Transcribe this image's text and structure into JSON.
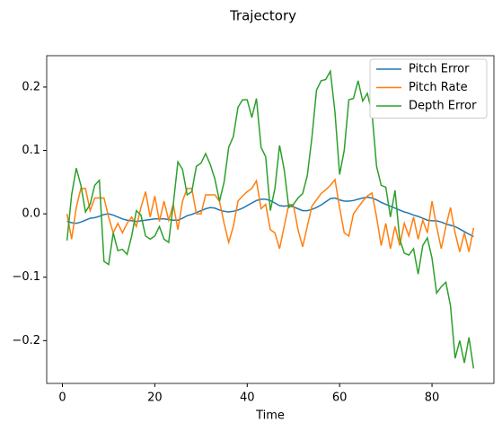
{
  "chart_data": {
    "type": "line",
    "title": "Trajectory",
    "x_label": "Time",
    "x": [
      1,
      2,
      3,
      4,
      5,
      6,
      7,
      8,
      9,
      10,
      11,
      12,
      13,
      14,
      15,
      16,
      17,
      18,
      19,
      20,
      21,
      22,
      23,
      24,
      25,
      26,
      27,
      28,
      29,
      30,
      31,
      32,
      33,
      34,
      35,
      36,
      37,
      38,
      39,
      40,
      41,
      42,
      43,
      44,
      45,
      46,
      47,
      48,
      49,
      50,
      51,
      52,
      53,
      54,
      55,
      56,
      57,
      58,
      59,
      60,
      61,
      62,
      63,
      64,
      65,
      66,
      67,
      68,
      69,
      70,
      71,
      72,
      73,
      74,
      75,
      76,
      77,
      78,
      79,
      80,
      81,
      82,
      83,
      84,
      85,
      86,
      87,
      88,
      89
    ],
    "series": [
      {
        "name": "Pitch Error",
        "color": "#1f77b4",
        "values": [
          -0.012,
          -0.014,
          -0.015,
          -0.013,
          -0.01,
          -0.007,
          -0.006,
          -0.004,
          -0.001,
          0.0,
          -0.002,
          -0.005,
          -0.008,
          -0.01,
          -0.011,
          -0.012,
          -0.011,
          -0.01,
          -0.009,
          -0.008,
          -0.008,
          -0.008,
          -0.009,
          -0.01,
          -0.01,
          -0.007,
          -0.003,
          -0.001,
          0.002,
          0.005,
          0.008,
          0.01,
          0.009,
          0.006,
          0.004,
          0.003,
          0.004,
          0.006,
          0.009,
          0.013,
          0.017,
          0.021,
          0.023,
          0.023,
          0.021,
          0.017,
          0.013,
          0.012,
          0.013,
          0.011,
          0.008,
          0.005,
          0.005,
          0.007,
          0.01,
          0.014,
          0.019,
          0.024,
          0.025,
          0.022,
          0.02,
          0.02,
          0.021,
          0.023,
          0.025,
          0.026,
          0.025,
          0.022,
          0.018,
          0.015,
          0.012,
          0.009,
          0.006,
          0.003,
          0.001,
          -0.002,
          -0.004,
          -0.007,
          -0.01,
          -0.011,
          -0.011,
          -0.013,
          -0.016,
          -0.018,
          -0.02,
          -0.024,
          -0.028,
          -0.032,
          -0.036
        ]
      },
      {
        "name": "Pitch Rate",
        "color": "#ff7f0e",
        "values": [
          0.0,
          -0.04,
          0.01,
          0.04,
          0.04,
          0.005,
          0.025,
          0.025,
          0.025,
          -0.005,
          -0.03,
          -0.015,
          -0.03,
          -0.015,
          -0.005,
          -0.02,
          0.01,
          0.035,
          -0.005,
          0.028,
          -0.012,
          0.02,
          -0.01,
          0.015,
          -0.025,
          0.02,
          0.04,
          0.04,
          0.0,
          0.0,
          0.03,
          0.03,
          0.03,
          0.02,
          -0.015,
          -0.045,
          -0.02,
          0.02,
          0.028,
          0.035,
          0.04,
          0.052,
          0.008,
          0.015,
          -0.025,
          -0.03,
          -0.055,
          -0.02,
          0.015,
          0.014,
          -0.025,
          -0.052,
          -0.02,
          0.012,
          0.022,
          0.032,
          0.038,
          0.045,
          0.054,
          0.01,
          -0.03,
          -0.035,
          0.0,
          0.01,
          0.02,
          0.028,
          0.033,
          -0.005,
          -0.05,
          -0.015,
          -0.055,
          -0.02,
          -0.05,
          -0.015,
          -0.035,
          -0.005,
          -0.04,
          -0.01,
          -0.03,
          0.02,
          -0.02,
          -0.055,
          -0.02,
          0.01,
          -0.03,
          -0.06,
          -0.03,
          -0.06,
          -0.022
        ]
      },
      {
        "name": "Depth Error",
        "color": "#2ca02c",
        "values": [
          -0.042,
          0.03,
          0.072,
          0.045,
          0.003,
          0.015,
          0.045,
          0.053,
          -0.075,
          -0.08,
          -0.03,
          -0.058,
          -0.056,
          -0.064,
          -0.035,
          0.005,
          -0.002,
          -0.035,
          -0.04,
          -0.035,
          -0.02,
          -0.04,
          -0.045,
          0.015,
          0.082,
          0.07,
          0.03,
          0.035,
          0.075,
          0.08,
          0.095,
          0.078,
          0.055,
          0.02,
          0.05,
          0.105,
          0.122,
          0.168,
          0.18,
          0.18,
          0.152,
          0.182,
          0.105,
          0.09,
          0.005,
          0.04,
          0.108,
          0.07,
          0.01,
          0.015,
          0.025,
          0.032,
          0.06,
          0.12,
          0.195,
          0.21,
          0.212,
          0.225,
          0.16,
          0.062,
          0.1,
          0.18,
          0.182,
          0.21,
          0.178,
          0.19,
          0.16,
          0.075,
          0.045,
          0.042,
          -0.005,
          0.037,
          -0.04,
          -0.062,
          -0.065,
          -0.055,
          -0.095,
          -0.05,
          -0.038,
          -0.07,
          -0.125,
          -0.115,
          -0.108,
          -0.145,
          -0.228,
          -0.2,
          -0.235,
          -0.195,
          -0.244
        ]
      }
    ],
    "xlim": [
      -3.4,
      93.4
    ],
    "xticks": [
      0,
      20,
      40,
      60,
      80
    ],
    "ylim": [
      -0.2675,
      0.2495
    ],
    "yticks": [
      {
        "value": -0.2,
        "label": "−0.2"
      },
      {
        "value": -0.1,
        "label": "−0.1"
      },
      {
        "value": 0,
        "label": "0.0"
      },
      0.1,
      0.2
    ],
    "legend": "upper right"
  }
}
